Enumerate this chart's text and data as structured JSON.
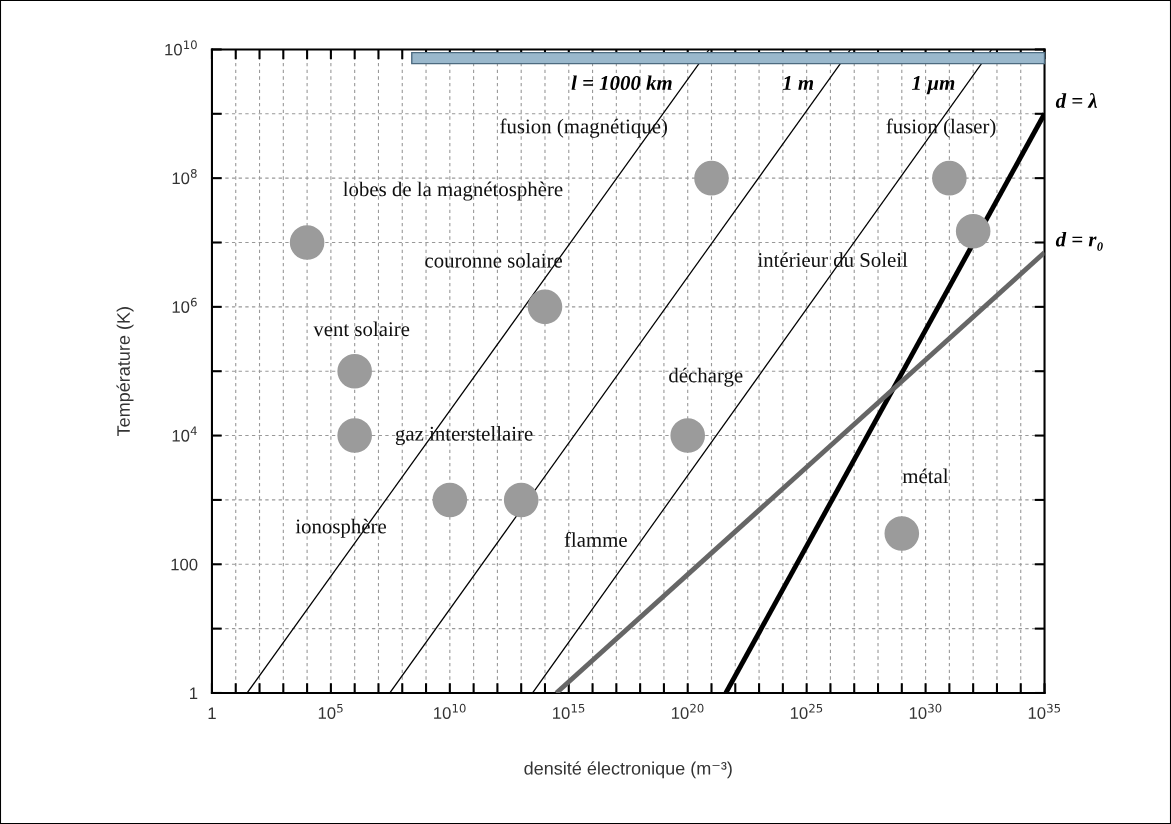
{
  "chart_data": {
    "type": "scatter",
    "xlabel": "densité électronique (m⁻³)",
    "ylabel": "Température (K)",
    "log": "xy",
    "grid": true,
    "legend": "top",
    "xlim": [
      1,
      1e+35
    ],
    "ylim": [
      1,
      10000000000.0
    ],
    "xticks": [
      1,
      {
        "value": 10.0,
        "label": null
      },
      {
        "value": 100.0,
        "label": null
      },
      {
        "value": 1000.0,
        "label": null
      },
      {
        "value": 10000.0,
        "label": null
      },
      {
        "value": 100000.0,
        "label": "10$^{5}$"
      },
      {
        "value": 1000000.0,
        "label": null
      },
      {
        "value": 10000000.0,
        "label": null
      },
      {
        "value": 100000000.0,
        "label": null
      },
      {
        "value": 1000000000.0,
        "label": null
      },
      {
        "value": 10000000000.0,
        "label": "10$^{10}$"
      },
      {
        "value": 100000000000.0,
        "label": null
      },
      {
        "value": 1000000000000.0,
        "label": null
      },
      {
        "value": 10000000000000.0,
        "label": null
      },
      {
        "value": 100000000000000.0,
        "label": null
      },
      {
        "value": 1000000000000000.0,
        "label": "10$^{15}$"
      },
      {
        "value": 1e+16,
        "label": null
      },
      {
        "value": 1e+17,
        "label": null
      },
      {
        "value": 1e+18,
        "label": null
      },
      {
        "value": 1e+19,
        "label": null
      },
      {
        "value": 1e+20,
        "label": "10$^{20}$"
      },
      {
        "value": 1e+21,
        "label": null
      },
      {
        "value": 1e+22,
        "label": null
      },
      {
        "value": 1e+23,
        "label": null
      },
      {
        "value": 1e+24,
        "label": null
      },
      {
        "value": 1e+25,
        "label": "10$^{25}$"
      },
      {
        "value": 1e+26,
        "label": null
      },
      {
        "value": 1e+27,
        "label": null
      },
      {
        "value": 1e+28,
        "label": null
      },
      {
        "value": 1e+29,
        "label": null
      },
      {
        "value": 1e+30,
        "label": "10$^{30}$"
      },
      {
        "value": 1e+31,
        "label": null
      },
      {
        "value": 1e+32,
        "label": null
      },
      {
        "value": 1e+33,
        "label": null
      },
      {
        "value": 1e+34,
        "label": null
      },
      {
        "value": 1e+35,
        "label": "10$^{35}$"
      }
    ],
    "yticks": [
      1,
      {
        "value": 10.0,
        "label": null
      },
      100,
      {
        "value": 1000.0,
        "label": null
      },
      {
        "value": 10000.0,
        "label": "10$^{4}$"
      },
      {
        "value": 100000.0,
        "label": null
      },
      {
        "value": 1000000.0,
        "label": "10$^{6}$"
      },
      {
        "value": 10000000.0,
        "label": null
      },
      {
        "value": 100000000.0,
        "label": "10$^{8}$"
      },
      {
        "value": 1000000000.0,
        "label": null
      },
      {
        "value": 10000000000.0,
        "label": "10$^{10}$"
      }
    ],
    "series": [
      {
        "marker": "circle",
        "color": "#9b9b9b",
        "x": [
          10000.0,
          1000000.0,
          1000000.0,
          10000000000.0,
          10000000000000.0,
          100000000000000.0,
          1e+20,
          1e+21,
          1e+29,
          1e+31,
          1e+32
        ],
        "values": [
          10000000.0,
          100000.0,
          10000.0,
          1000.0,
          1000.0,
          1000000.0,
          10000.0,
          100000000.0,
          300,
          100000000.0,
          15000000.0
        ]
      },
      {
        "type": "line",
        "name": "l = 1000 km",
        "color": "#000000",
        "x": [
          30,
          8e+20
        ],
        "values": [
          1,
          10000000000.0
        ]
      },
      {
        "type": "line",
        "name": "1 m",
        "color": "#000000",
        "x": [
          30000000.0,
          7e+26
        ],
        "values": [
          1,
          10000000000.0
        ]
      },
      {
        "type": "line",
        "name": "1 µm",
        "color": "#000000",
        "x": [
          30000000000000.0,
          6e+32
        ],
        "values": [
          1,
          10000000000.0
        ]
      },
      {
        "type": "line",
        "name": "d = λ",
        "color": "#000000",
        "x": [
          4e+21,
          1e+35
        ],
        "values": [
          1,
          1000000000.0
        ]
      },
      {
        "type": "line",
        "name": "d = r₀",
        "color": "#666666",
        "x": [
          300000000000000.0,
          1e+35
        ],
        "values": [
          1,
          7000000.0
        ]
      }
    ],
    "annotations": [
      {
        "text": "lobes de la magnétosphère",
        "x": 10000.0,
        "y": 10000000.0
      },
      {
        "text": "vent solaire",
        "x": 1000000.0,
        "y": 100000.0
      },
      {
        "text": "gaz interstellaire",
        "x": 1000000.0,
        "y": 10000.0
      },
      "ionosphère",
      "flamme",
      {
        "text": "couronne solaire",
        "x": 100000000000000.0,
        "y": 1000000.0
      },
      {
        "text": "décharge",
        "x": 1e+20,
        "y": 10000.0
      },
      {
        "text": "fusion (magnétique)",
        "x": 1e+21,
        "y": 100000000.0
      },
      {
        "text": "métal",
        "x": 1e+29,
        "y": 300
      },
      {
        "text": "fusion (laser)",
        "x": 1e+31,
        "y": 100000000.0
      },
      "intérieur du Soleil"
    ]
  }
}
